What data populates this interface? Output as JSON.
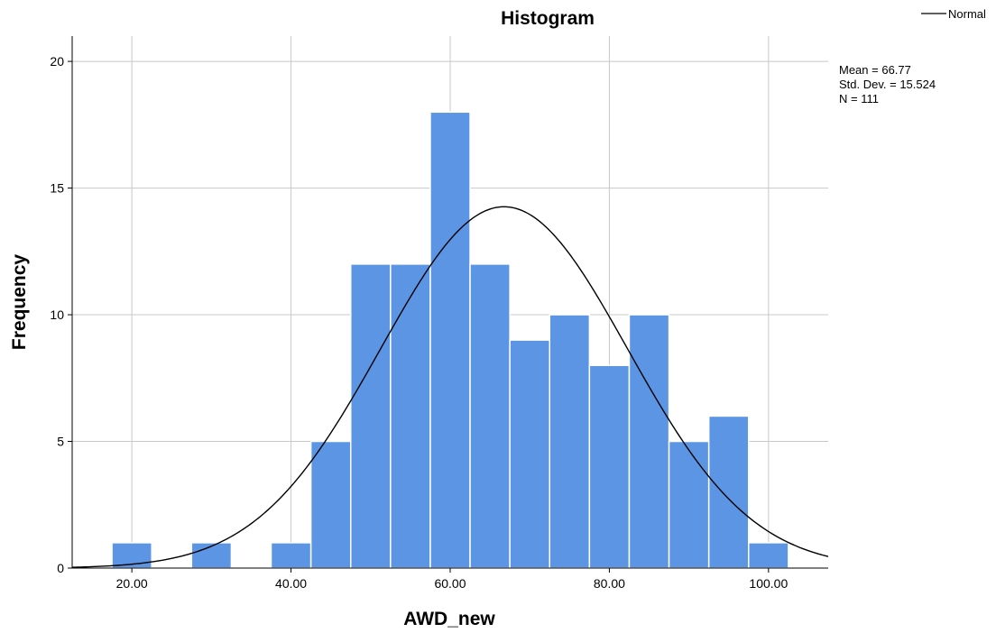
{
  "chart_data": {
    "type": "bar",
    "title": "Histogram",
    "xlabel": "AWD_new",
    "ylabel": "Frequency",
    "xlim": [
      12.5,
      107.5
    ],
    "ylim": [
      0,
      21
    ],
    "grid": true,
    "x_ticks": [
      {
        "value": 20,
        "label": "20.00"
      },
      {
        "value": 40,
        "label": "40.00"
      },
      {
        "value": 60,
        "label": "60.00"
      },
      {
        "value": 80,
        "label": "80.00"
      },
      {
        "value": 100,
        "label": "100.00"
      }
    ],
    "y_ticks": [
      {
        "value": 0,
        "label": "0"
      },
      {
        "value": 5,
        "label": "5"
      },
      {
        "value": 10,
        "label": "10"
      },
      {
        "value": 15,
        "label": "15"
      },
      {
        "value": 20,
        "label": "20"
      }
    ],
    "bin_width": 5,
    "bins": [
      {
        "start": 17.5,
        "end": 22.5,
        "count": 1
      },
      {
        "start": 27.5,
        "end": 32.5,
        "count": 1
      },
      {
        "start": 37.5,
        "end": 42.5,
        "count": 1
      },
      {
        "start": 42.5,
        "end": 47.5,
        "count": 5
      },
      {
        "start": 47.5,
        "end": 52.5,
        "count": 12
      },
      {
        "start": 52.5,
        "end": 57.5,
        "count": 12
      },
      {
        "start": 57.5,
        "end": 62.5,
        "count": 18
      },
      {
        "start": 62.5,
        "end": 67.5,
        "count": 12
      },
      {
        "start": 67.5,
        "end": 72.5,
        "count": 9
      },
      {
        "start": 72.5,
        "end": 77.5,
        "count": 10
      },
      {
        "start": 77.5,
        "end": 82.5,
        "count": 8
      },
      {
        "start": 82.5,
        "end": 87.5,
        "count": 10
      },
      {
        "start": 87.5,
        "end": 92.5,
        "count": 5
      },
      {
        "start": 92.5,
        "end": 97.5,
        "count": 6
      },
      {
        "start": 97.5,
        "end": 102.5,
        "count": 1
      }
    ],
    "normal_curve": {
      "mean": 66.77,
      "std_dev": 15.524,
      "n": 111
    },
    "stats_lines": [
      "Mean = 66.77",
      "Std. Dev. = 15.524",
      "N = 111"
    ],
    "legend": {
      "label": "Normal",
      "placement": "top-right"
    },
    "colors": {
      "bar": "#5b95e3",
      "bar_edge": "#ffffff",
      "grid": "#c8c8c8",
      "axis": "#000000",
      "curve": "#000000"
    }
  }
}
